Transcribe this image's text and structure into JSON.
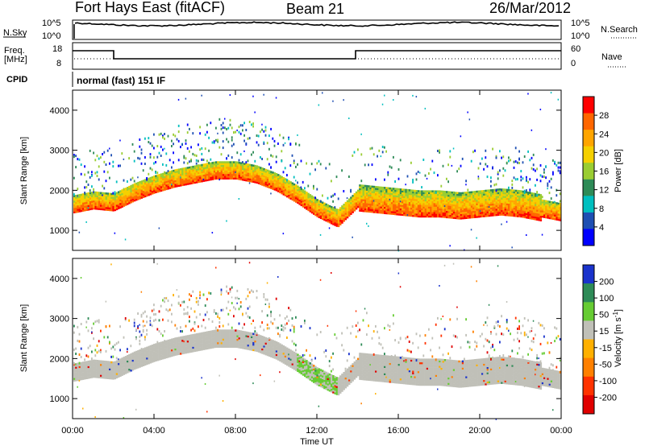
{
  "header": {
    "station": "Fort Hays East (fitACF)",
    "beam": "Beam 21",
    "date": "26/Mar/2012"
  },
  "noise_panel": {
    "left_label": "N.Sky",
    "right_label": "N.Search",
    "left_ticks": [
      "10^5",
      "10^0"
    ],
    "right_ticks": [
      "10^5",
      "10^0"
    ]
  },
  "freq_panel": {
    "left_label_line1": "Freq.",
    "left_label_line2": "[MHz]",
    "right_label": "Nave",
    "left_ticks": [
      "18",
      "8"
    ],
    "right_ticks": [
      "60",
      "0"
    ]
  },
  "cpid": {
    "label": "CPID",
    "mode_text": "normal (fast) 151 IF"
  },
  "chart_data": [
    {
      "type": "heatmap",
      "panel": "power",
      "ylabel": "Slant Range [km]",
      "yticks": [
        "4000",
        "3000",
        "2000",
        "1000"
      ],
      "ylim": [
        500,
        4500
      ],
      "xlim_hours": [
        0,
        24
      ],
      "colorbar_label": "Power [dB]",
      "colorbar_ticks": [
        "28",
        "24",
        "20",
        "16",
        "12",
        "8",
        "4"
      ],
      "colorbar_colors": [
        "#ff0000",
        "#ff6600",
        "#ffa500",
        "#f5d000",
        "#9acd32",
        "#2e8b57",
        "#00bfbf",
        "#1e4fb3",
        "#0000ff"
      ],
      "band_center_km": [
        [
          0,
          1650
        ],
        [
          1,
          1750
        ],
        [
          2,
          1700
        ],
        [
          3,
          1950
        ],
        [
          4,
          2150
        ],
        [
          5,
          2300
        ],
        [
          6,
          2400
        ],
        [
          7,
          2500
        ],
        [
          8,
          2500
        ],
        [
          9,
          2400
        ],
        [
          10,
          2200
        ],
        [
          11,
          1900
        ],
        [
          12,
          1550
        ],
        [
          13,
          1300
        ],
        [
          14,
          1800
        ],
        [
          15,
          1750
        ],
        [
          16,
          1700
        ],
        [
          17,
          1650
        ],
        [
          18,
          1650
        ],
        [
          19,
          1600
        ],
        [
          20,
          1650
        ],
        [
          21,
          1700
        ],
        [
          22,
          1650
        ],
        [
          23,
          1550
        ],
        [
          24,
          1450
        ]
      ]
    },
    {
      "type": "heatmap",
      "panel": "velocity",
      "ylabel": "Slant Range [km]",
      "yticks": [
        "4000",
        "3000",
        "2000",
        "1000"
      ],
      "ylim": [
        500,
        4500
      ],
      "xlim_hours": [
        0,
        24
      ],
      "colorbar_label": "Velocity [m s^-1]",
      "colorbar_ticks": [
        "200",
        "100",
        "50",
        "15",
        "-15",
        "-50",
        "-100",
        "-200"
      ],
      "colorbar_colors": [
        "#1a33cc",
        "#2e8b57",
        "#66cc33",
        "#c0c0b8",
        "#ffb000",
        "#ff8000",
        "#ff3300",
        "#e00000"
      ]
    }
  ],
  "x_axis": {
    "ticks": [
      "00:00",
      "04:00",
      "08:00",
      "12:00",
      "16:00",
      "20:00",
      "00:00"
    ],
    "label": "Time UT"
  }
}
